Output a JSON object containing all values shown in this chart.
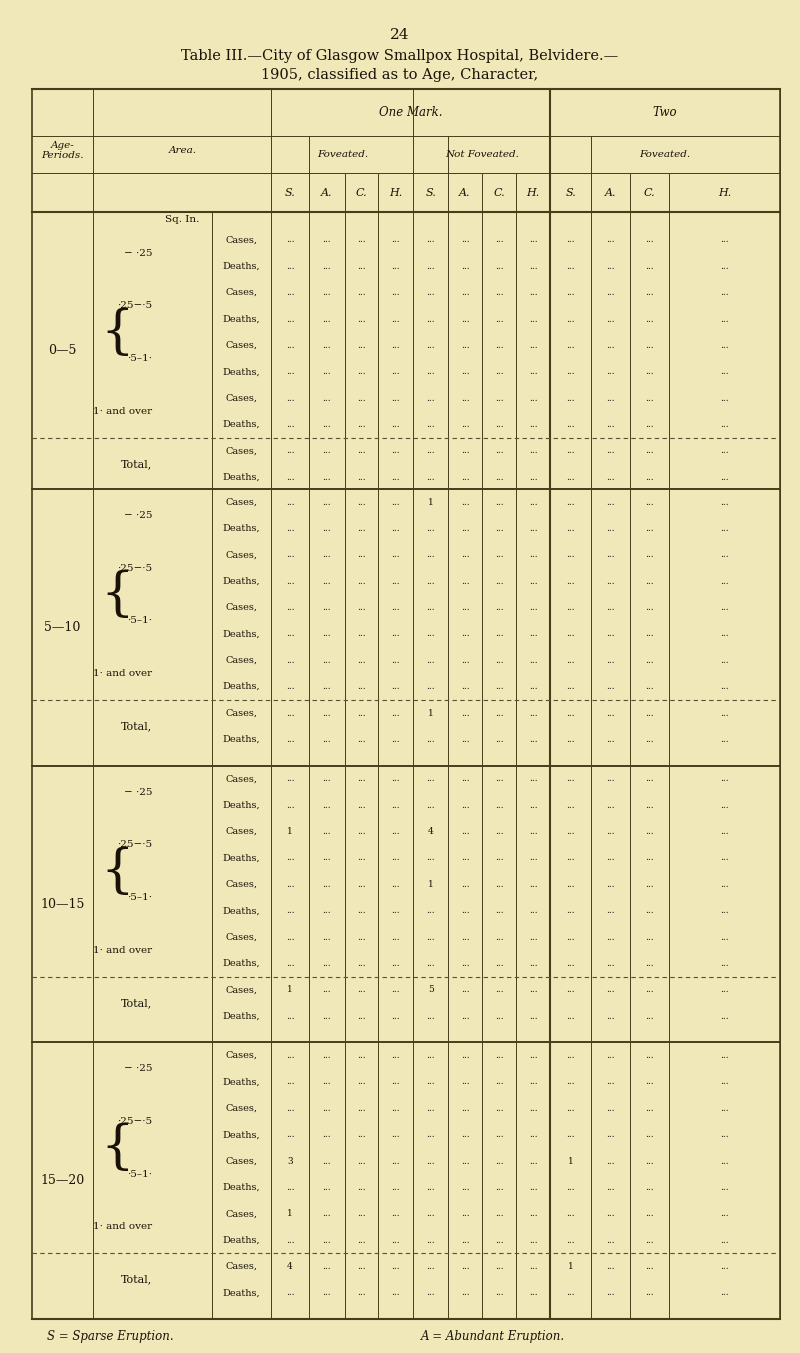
{
  "page_number": "24",
  "title_line1": "Table III.—City of Glasgow Smallpox Hospital, Belvidere.—",
  "title_line2": "1905, classified as to Age, Character,",
  "bg_color": "#f0e8b8",
  "text_color": "#1a1208",
  "age_groups": [
    {
      "label": "0—5",
      "sq_in_label": "Sq. In.",
      "sub_areas": [
        {
          "area": "− ·25",
          "rows": [
            [
              "Cases,",
              "...",
              "...",
              "...",
              "...",
              "...",
              "...",
              "...",
              "...",
              "...",
              "...",
              "...",
              "..."
            ],
            [
              "Deaths,",
              "...",
              "...",
              "...",
              "...",
              "...",
              "...",
              "...",
              "...",
              "...",
              "...",
              "...",
              "..."
            ]
          ]
        },
        {
          "area": "·25−·5",
          "rows": [
            [
              "Cases,",
              "...",
              "...",
              "...",
              "...",
              "...",
              "...",
              "...",
              "...",
              "...",
              "...",
              "...",
              "..."
            ],
            [
              "Deaths,",
              "...",
              "...",
              "...",
              "...",
              "...",
              "...",
              "...",
              "...",
              "...",
              "...",
              "...",
              "..."
            ]
          ]
        },
        {
          "area": "·5–1·",
          "rows": [
            [
              "Cases,",
              "...",
              "...",
              "...",
              "...",
              "...",
              "...",
              "...",
              "...",
              "...",
              "...",
              "...",
              "..."
            ],
            [
              "Deaths,",
              "...",
              "...",
              "...",
              "...",
              "...",
              "...",
              "...",
              "...",
              "...",
              "...",
              "...",
              "..."
            ]
          ]
        },
        {
          "area": "1· and over",
          "rows": [
            [
              "Cases,",
              "...",
              "...",
              "...",
              "...",
              "...",
              "...",
              "...",
              "...",
              "...",
              "...",
              "...",
              "..."
            ],
            [
              "Deaths,",
              "...",
              "...",
              "...",
              "...",
              "...",
              "...",
              "...",
              "...",
              "...",
              "...",
              "...",
              "..."
            ]
          ]
        }
      ],
      "total_rows": [
        [
          "Cases,",
          "...",
          "...",
          "...",
          "...",
          "...",
          "...",
          "...",
          "...",
          "...",
          "...",
          "...",
          "..."
        ],
        [
          "Deaths,",
          "...",
          "...",
          "...",
          "...",
          "...",
          "...",
          "...",
          "...",
          "...",
          "...",
          "...",
          "..."
        ]
      ]
    },
    {
      "label": "5—10",
      "sq_in_label": "",
      "sub_areas": [
        {
          "area": "− ·25",
          "rows": [
            [
              "Cases,",
              "...",
              "...",
              "...",
              "...",
              "1",
              "...",
              "...",
              "...",
              "...",
              "...",
              "...",
              "..."
            ],
            [
              "Deaths,",
              "...",
              "...",
              "...",
              "...",
              "...",
              "...",
              "...",
              "...",
              "...",
              "...",
              "...",
              "..."
            ]
          ]
        },
        {
          "area": "·25−·5",
          "rows": [
            [
              "Cases,",
              "...",
              "...",
              "...",
              "...",
              "...",
              "...",
              "...",
              "...",
              "...",
              "...",
              "...",
              "..."
            ],
            [
              "Deaths,",
              "...",
              "...",
              "...",
              "...",
              "...",
              "...",
              "...",
              "...",
              "...",
              "...",
              "...",
              "..."
            ]
          ]
        },
        {
          "area": "·5–1·",
          "rows": [
            [
              "Cases,",
              "...",
              "...",
              "...",
              "...",
              "...",
              "...",
              "...",
              "...",
              "...",
              "...",
              "...",
              "..."
            ],
            [
              "Deaths,",
              "...",
              "...",
              "...",
              "...",
              "...",
              "...",
              "...",
              "...",
              "...",
              "...",
              "...",
              "..."
            ]
          ]
        },
        {
          "area": "1· and over",
          "rows": [
            [
              "Cases,",
              "...",
              "...",
              "...",
              "...",
              "...",
              "...",
              "...",
              "...",
              "...",
              "...",
              "...",
              "..."
            ],
            [
              "Deaths,",
              "...",
              "...",
              "...",
              "...",
              "...",
              "...",
              "...",
              "...",
              "...",
              "...",
              "...",
              "..."
            ]
          ]
        }
      ],
      "total_rows": [
        [
          "Cases,",
          "...",
          "...",
          "...",
          "...",
          "1",
          "...",
          "...",
          "...",
          "...",
          "...",
          "...",
          "..."
        ],
        [
          "Deaths,",
          "...",
          "...",
          "...",
          "...",
          "...",
          "...",
          "...",
          "...",
          "...",
          "...",
          "...",
          "..."
        ]
      ]
    },
    {
      "label": "10—15",
      "sq_in_label": "",
      "sub_areas": [
        {
          "area": "− ·25",
          "rows": [
            [
              "Cases,",
              "...",
              "...",
              "...",
              "...",
              "...",
              "...",
              "...",
              "...",
              "...",
              "...",
              "...",
              "..."
            ],
            [
              "Deaths,",
              "...",
              "...",
              "...",
              "...",
              "...",
              "...",
              "...",
              "...",
              "...",
              "...",
              "...",
              "..."
            ]
          ]
        },
        {
          "area": "·25−·5",
          "rows": [
            [
              "Cases,",
              "1",
              "...",
              "...",
              "...",
              "4",
              "...",
              "...",
              "...",
              "...",
              "...",
              "...",
              "..."
            ],
            [
              "Deaths,",
              "...",
              "...",
              "...",
              "...",
              "...",
              "...",
              "...",
              "...",
              "...",
              "...",
              "...",
              "..."
            ]
          ]
        },
        {
          "area": "·5–1·",
          "rows": [
            [
              "Cases,",
              "...",
              "...",
              "...",
              "...",
              "1",
              "...",
              "...",
              "...",
              "...",
              "...",
              "...",
              "..."
            ],
            [
              "Deaths,",
              "...",
              "...",
              "...",
              "...",
              "...",
              "...",
              "...",
              "...",
              "...",
              "...",
              "...",
              "..."
            ]
          ]
        },
        {
          "area": "1· and over",
          "rows": [
            [
              "Cases,",
              "...",
              "...",
              "...",
              "...",
              "...",
              "...",
              "...",
              "...",
              "...",
              "...",
              "...",
              "..."
            ],
            [
              "Deaths,",
              "...",
              "...",
              "...",
              "...",
              "...",
              "...",
              "...",
              "...",
              "...",
              "...",
              "...",
              "..."
            ]
          ]
        }
      ],
      "total_rows": [
        [
          "Cases,",
          "1",
          "...",
          "...",
          "...",
          "5",
          "...",
          "...",
          "...",
          "...",
          "...",
          "...",
          "..."
        ],
        [
          "Deaths,",
          "...",
          "...",
          "...",
          "...",
          "...",
          "...",
          "...",
          "...",
          "...",
          "...",
          "...",
          "..."
        ]
      ]
    },
    {
      "label": "15—20",
      "sq_in_label": "",
      "sub_areas": [
        {
          "area": "− ·25",
          "rows": [
            [
              "Cases,",
              "...",
              "...",
              "...",
              "...",
              "...",
              "...",
              "...",
              "...",
              "...",
              "...",
              "...",
              "..."
            ],
            [
              "Deaths,",
              "...",
              "...",
              "...",
              "...",
              "...",
              "...",
              "...",
              "...",
              "...",
              "...",
              "...",
              "..."
            ]
          ]
        },
        {
          "area": "·25−·5",
          "rows": [
            [
              "Cases,",
              "...",
              "...",
              "...",
              "...",
              "...",
              "...",
              "...",
              "...",
              "...",
              "...",
              "...",
              "..."
            ],
            [
              "Deaths,",
              "...",
              "...",
              "...",
              "...",
              "...",
              "...",
              "...",
              "...",
              "...",
              "...",
              "...",
              "..."
            ]
          ]
        },
        {
          "area": "·5–1·",
          "rows": [
            [
              "Cases,",
              "3",
              "...",
              "...",
              "...",
              "...",
              "...",
              "...",
              "...",
              "1",
              "...",
              "...",
              "..."
            ],
            [
              "Deaths,",
              "...",
              "...",
              "...",
              "...",
              "...",
              "...",
              "...",
              "...",
              "...",
              "...",
              "...",
              "..."
            ]
          ]
        },
        {
          "area": "1· and over",
          "rows": [
            [
              "Cases,",
              "1",
              "...",
              "...",
              "...",
              "...",
              "...",
              "...",
              "...",
              "...",
              "...",
              "...",
              "..."
            ],
            [
              "Deaths,",
              "...",
              "...",
              "...",
              "...",
              "...",
              "...",
              "...",
              "...",
              "...",
              "...",
              "...",
              "..."
            ]
          ]
        }
      ],
      "total_rows": [
        [
          "Cases,",
          "4",
          "...",
          "...",
          "...",
          "...",
          "...",
          "...",
          "...",
          "1",
          "...",
          "...",
          "..."
        ],
        [
          "Deaths,",
          "...",
          "...",
          "...",
          "...",
          "...",
          "...",
          "...",
          "...",
          "...",
          "...",
          "...",
          "..."
        ]
      ]
    }
  ],
  "footnote_left": "S = Sparse Eruption.",
  "footnote_right": "A = Abundant Eruption."
}
